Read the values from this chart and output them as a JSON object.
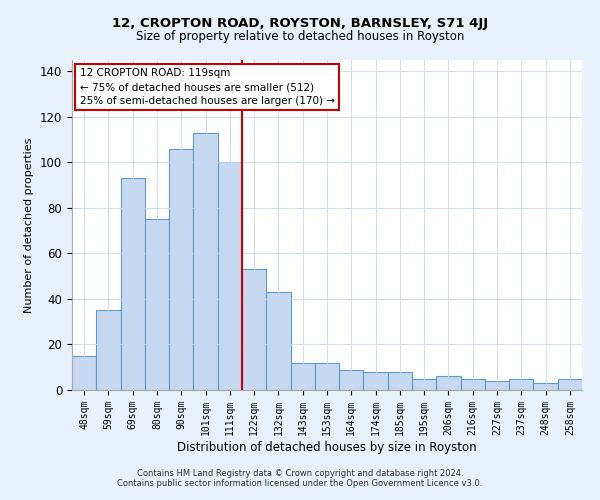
{
  "title1": "12, CROPTON ROAD, ROYSTON, BARNSLEY, S71 4JJ",
  "title2": "Size of property relative to detached houses in Royston",
  "xlabel": "Distribution of detached houses by size in Royston",
  "ylabel": "Number of detached properties",
  "bar_labels": [
    "48sqm",
    "59sqm",
    "69sqm",
    "80sqm",
    "90sqm",
    "101sqm",
    "111sqm",
    "122sqm",
    "132sqm",
    "143sqm",
    "153sqm",
    "164sqm",
    "174sqm",
    "185sqm",
    "195sqm",
    "206sqm",
    "216sqm",
    "227sqm",
    "237sqm",
    "248sqm",
    "258sqm"
  ],
  "bar_values": [
    15,
    35,
    93,
    75,
    106,
    113,
    100,
    53,
    43,
    12,
    12,
    9,
    8,
    8,
    5,
    6,
    5,
    4,
    5,
    3,
    5
  ],
  "bar_color": "#c6d9f0",
  "bar_edgecolor": "#5b9bd5",
  "vline_color": "#cc0000",
  "annotation_line1": "12 CROPTON ROAD: 119sqm",
  "annotation_line2": "← 75% of detached houses are smaller (512)",
  "annotation_line3": "25% of semi-detached houses are larger (170) →",
  "ylim": [
    0,
    145
  ],
  "yticks": [
    0,
    20,
    40,
    60,
    80,
    100,
    120,
    140
  ],
  "footnote1": "Contains HM Land Registry data © Crown copyright and database right 2024.",
  "footnote2": "Contains public sector information licensed under the Open Government Licence v3.0.",
  "bg_color": "#e8f0fb",
  "plot_bg": "#ffffff",
  "grid_color": "#c8d8ec"
}
